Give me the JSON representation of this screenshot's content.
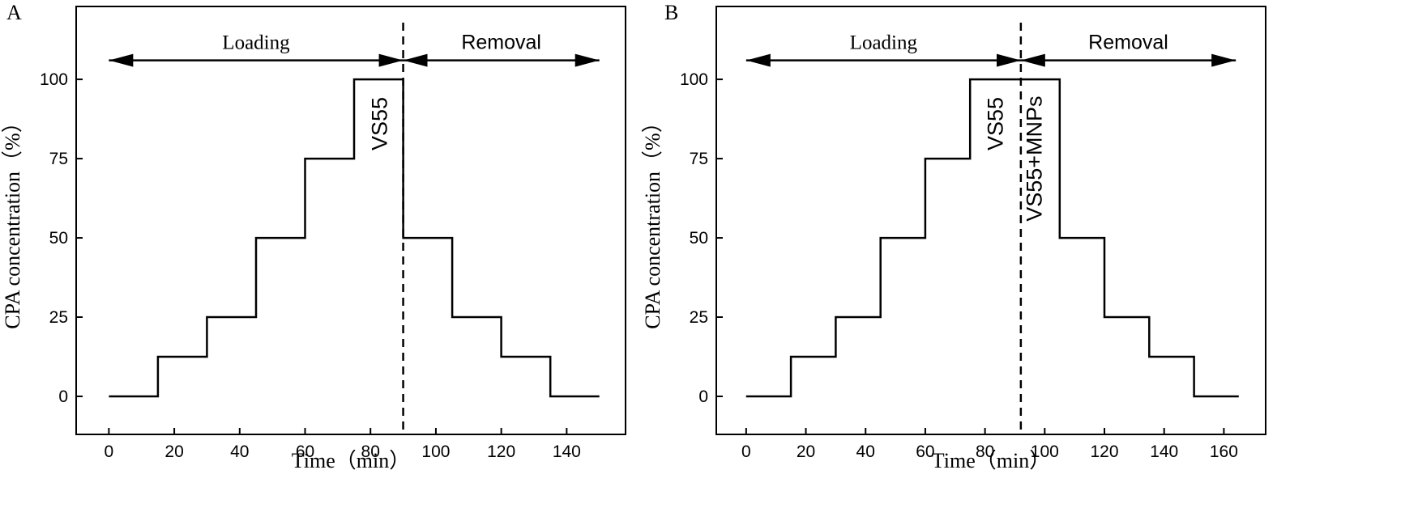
{
  "figure": {
    "panels": [
      "A",
      "B"
    ]
  },
  "colors": {
    "line": "#000000",
    "background": "#ffffff"
  },
  "chart_data": [
    {
      "id": "A",
      "type": "line",
      "panel_label": "A",
      "title": "",
      "xlabel": "Time（min）",
      "ylabel": "CPA concentration（%）",
      "xlim": [
        -10,
        158
      ],
      "ylim": [
        -12,
        123
      ],
      "xticks": [
        0,
        20,
        40,
        60,
        80,
        100,
        120,
        140
      ],
      "yticks": [
        0,
        25,
        50,
        75,
        100
      ],
      "grid": false,
      "series": [
        {
          "name": "CPA concentration",
          "x": [
            0,
            15,
            15,
            30,
            30,
            45,
            45,
            60,
            60,
            75,
            75,
            90,
            90,
            105,
            105,
            120,
            120,
            135,
            135,
            150
          ],
          "y": [
            0,
            0,
            12.5,
            12.5,
            25,
            25,
            50,
            50,
            75,
            75,
            100,
            100,
            50,
            50,
            25,
            25,
            12.5,
            12.5,
            0,
            0
          ]
        }
      ],
      "divider_x": 90,
      "arrows": [
        {
          "label": "Loading",
          "x_from": 0,
          "x_to": 90,
          "y": 106
        },
        {
          "label": "Removal",
          "x_from": 90,
          "x_to": 150,
          "y": 106
        }
      ],
      "annotations": [
        {
          "text": "VS55",
          "x": 85,
          "y": 86,
          "rotate": -90
        }
      ]
    },
    {
      "id": "B",
      "type": "line",
      "panel_label": "B",
      "title": "",
      "xlabel": "Time（min）",
      "ylabel": "CPA concentration（%）",
      "xlim": [
        -10,
        174
      ],
      "ylim": [
        -12,
        123
      ],
      "xticks": [
        0,
        20,
        40,
        60,
        80,
        100,
        120,
        140,
        160
      ],
      "yticks": [
        0,
        25,
        50,
        75,
        100
      ],
      "grid": false,
      "series": [
        {
          "name": "CPA concentration",
          "x": [
            0,
            15,
            15,
            30,
            30,
            45,
            45,
            60,
            60,
            75,
            75,
            105,
            105,
            120,
            120,
            135,
            135,
            150,
            150,
            165
          ],
          "y": [
            0,
            0,
            12.5,
            12.5,
            25,
            25,
            50,
            50,
            75,
            75,
            100,
            100,
            50,
            50,
            25,
            25,
            12.5,
            12.5,
            0,
            0
          ]
        }
      ],
      "divider_x": 92,
      "arrows": [
        {
          "label": "Loading",
          "x_from": 0,
          "x_to": 92,
          "y": 106
        },
        {
          "label": "Removal",
          "x_from": 92,
          "x_to": 164,
          "y": 106
        }
      ],
      "annotations": [
        {
          "text": "VS55",
          "x": 86,
          "y": 86,
          "rotate": -90
        },
        {
          "text": "VS55+MNPs",
          "x": 99,
          "y": 75,
          "rotate": -90
        }
      ]
    }
  ]
}
